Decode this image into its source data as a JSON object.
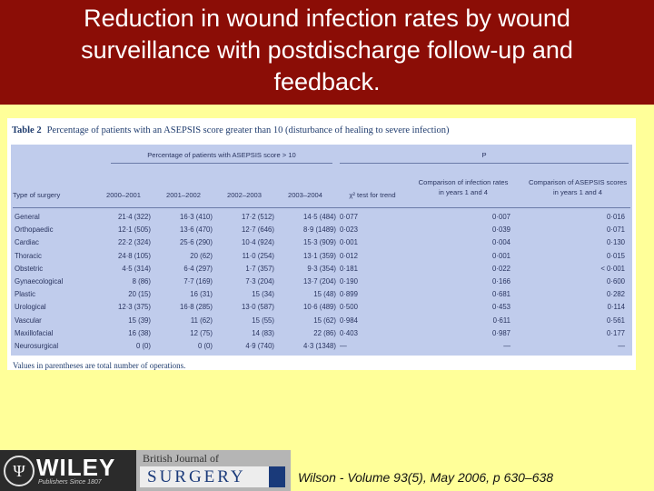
{
  "header": {
    "title_lines": [
      "Reduction in wound infection rates by wound",
      "surveillance with postdischarge follow-up and",
      "feedback."
    ]
  },
  "table": {
    "label": "Table 2",
    "caption": "Percentage of patients with an ASEPSIS score greater than 10 (disturbance of healing to severe infection)",
    "group_left": "Percentage of patients with ASEPSIS score > 10",
    "group_right": "P",
    "columns": [
      "Type of surgery",
      "2000–2001",
      "2001–2002",
      "2002–2003",
      "2003–2004",
      "χ² test for trend",
      "Comparison of infection rates in years 1 and 4",
      "Comparison of ASEPSIS scores in years 1 and 4"
    ],
    "rows": [
      [
        "General",
        "21·4 (322)",
        "16·3 (410)",
        "17·2 (512)",
        "14·5 (484)",
        "0·077",
        "0·007",
        "0·016"
      ],
      [
        "Orthopaedic",
        "12·1 (505)",
        "13·6 (470)",
        "12·7 (646)",
        "8·9 (1489)",
        "0·023",
        "0·039",
        "0·071"
      ],
      [
        "Cardiac",
        "22·2 (324)",
        "25·6 (290)",
        "10·4 (924)",
        "15·3 (909)",
        "0·001",
        "0·004",
        "0·130"
      ],
      [
        "Thoracic",
        "24·8 (105)",
        "20 (62)",
        "11·0 (254)",
        "13·1 (359)",
        "0·012",
        "0·001",
        "0·015"
      ],
      [
        "Obstetric",
        "4·5 (314)",
        "6·4 (297)",
        "1·7 (357)",
        "9·3 (354)",
        "0·181",
        "0·022",
        "< 0·001"
      ],
      [
        "Gynaecological",
        "8 (86)",
        "7·7 (169)",
        "7·3 (204)",
        "13·7 (204)",
        "0·190",
        "0·166",
        "0·600"
      ],
      [
        "Plastic",
        "20 (15)",
        "16 (31)",
        "15 (34)",
        "15 (48)",
        "0·899",
        "0·681",
        "0·282"
      ],
      [
        "Urological",
        "12·3 (375)",
        "16·8 (285)",
        "13·0 (587)",
        "10·6 (489)",
        "0·500",
        "0·453",
        "0·114"
      ],
      [
        "Vascular",
        "15 (39)",
        "11 (62)",
        "15 (55)",
        "15 (62)",
        "0·984",
        "0·611",
        "0·561"
      ],
      [
        "Maxillofacial",
        "16 (38)",
        "12 (75)",
        "14 (83)",
        "22 (86)",
        "0·403",
        "0·987",
        "0·177"
      ],
      [
        "Neurosurgical",
        "0 (0)",
        "0 (0)",
        "4·9 (740)",
        "4·3 (1348)",
        "—",
        "—",
        "—"
      ]
    ],
    "note": "Values in parentheses are total number of operations."
  },
  "footer": {
    "publisher": "WILEY",
    "publisher_tagline": "Publishers Since 1807",
    "journal_top": "British Journal of",
    "journal_name": "SURGERY",
    "citation": "Wilson - Volume 93(5), May 2006, p 630–638"
  },
  "colors": {
    "header_bg": "#8b0d06",
    "slide_bg": "#ffff99",
    "table_bg": "#c0ccec"
  }
}
